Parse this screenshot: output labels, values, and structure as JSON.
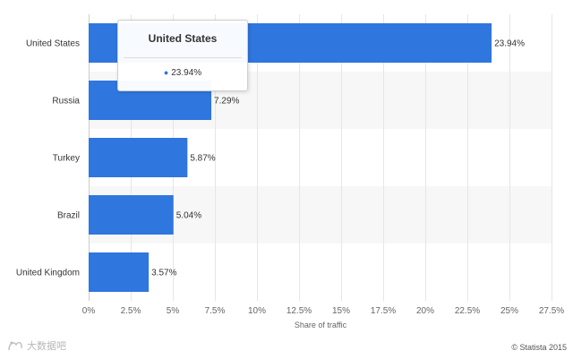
{
  "chart_data": {
    "type": "bar",
    "orientation": "horizontal",
    "categories": [
      "United States",
      "Russia",
      "Turkey",
      "Brazil",
      "United Kingdom"
    ],
    "values": [
      23.94,
      7.29,
      5.87,
      5.04,
      3.57
    ],
    "value_labels": [
      "23.94%",
      "7.29%",
      "5.87%",
      "5.04%",
      "3.57%"
    ],
    "xlabel": "Share of traffic",
    "ylabel": "",
    "xlim": [
      0,
      27.5
    ],
    "x_ticks": [
      0,
      2.5,
      5,
      7.5,
      10,
      12.5,
      15,
      17.5,
      20,
      22.5,
      25,
      27.5
    ],
    "x_tick_labels": [
      "0%",
      "2.5%",
      "5%",
      "7.5%",
      "10%",
      "12.5%",
      "15%",
      "17.5%",
      "20%",
      "22.5%",
      "25%",
      "27.5%"
    ],
    "grid": true,
    "bar_color": "#2f76de"
  },
  "tooltip": {
    "title": "United States",
    "value": "23.94%",
    "bullet": "●"
  },
  "watermark": {
    "text": "大数据吧"
  },
  "credit": "© Statista 2015"
}
